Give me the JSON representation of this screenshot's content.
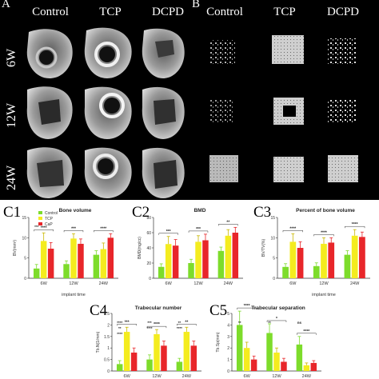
{
  "panel_a": {
    "letter": "A",
    "columns": [
      "Control",
      "TCP",
      "DCPD"
    ],
    "rows": [
      "6W",
      "12W",
      "24W"
    ]
  },
  "panel_b": {
    "letter": "B",
    "columns": [
      "Control",
      "TCP",
      "DCPD"
    ]
  },
  "colors": {
    "control": "#7ddc2b",
    "tcp": "#f4ec1f",
    "cap": "#e8262a",
    "background_top": "#000000"
  },
  "chart_data": [
    {
      "id": "C1",
      "letter": "C1",
      "type": "bar",
      "title": "Bone volume",
      "ylabel": "BV(mm³)",
      "xlabel": "implant time",
      "categories": [
        "6W",
        "12W",
        "24W"
      ],
      "ylim": [
        0,
        15
      ],
      "yticks": [
        0,
        5,
        10,
        15
      ],
      "legend": {
        "placement": "top-left",
        "entries": [
          "Control",
          "TCP",
          "CaP"
        ]
      },
      "series": [
        {
          "name": "Control",
          "values": [
            2.4,
            3.5,
            5.8
          ],
          "errors": [
            1.0,
            0.8,
            1.0
          ]
        },
        {
          "name": "TCP",
          "values": [
            9.2,
            9.8,
            7.2
          ],
          "errors": [
            2.0,
            1.2,
            1.5
          ]
        },
        {
          "name": "CaP",
          "values": [
            7.3,
            8.5,
            10.0
          ],
          "errors": [
            1.5,
            1.2,
            1.0
          ]
        }
      ],
      "significance": [
        "****",
        "***",
        "****",
        "***"
      ]
    },
    {
      "id": "C2",
      "letter": "C2",
      "type": "bar",
      "title": "BMD",
      "ylabel": "BMD(mg/cc)",
      "xlabel": "",
      "categories": [
        "6W",
        "12W",
        "24W"
      ],
      "ylim": [
        0,
        80
      ],
      "yticks": [
        0,
        20,
        40,
        60,
        80
      ],
      "series": [
        {
          "name": "Control",
          "values": [
            15,
            20,
            36
          ],
          "errors": [
            4,
            5,
            5
          ]
        },
        {
          "name": "TCP",
          "values": [
            45,
            48,
            56
          ],
          "errors": [
            10,
            8,
            8
          ]
        },
        {
          "name": "CaP",
          "values": [
            43,
            50,
            60
          ],
          "errors": [
            8,
            8,
            7
          ]
        }
      ],
      "significance": [
        "***",
        "***",
        "**"
      ]
    },
    {
      "id": "C3",
      "letter": "C3",
      "type": "bar",
      "title": "Percent of bone volume",
      "ylabel": "BV/TV(%)",
      "xlabel": "implant time",
      "categories": [
        "6W",
        "12W",
        "24W"
      ],
      "ylim": [
        0,
        15
      ],
      "yticks": [
        0,
        5,
        10,
        15
      ],
      "series": [
        {
          "name": "Control",
          "values": [
            2.8,
            3.0,
            5.8
          ],
          "errors": [
            0.8,
            0.8,
            1.0
          ]
        },
        {
          "name": "TCP",
          "values": [
            9.0,
            8.5,
            10.5
          ],
          "errors": [
            2.0,
            1.5,
            1.5
          ]
        },
        {
          "name": "CaP",
          "values": [
            7.5,
            8.8,
            10.2
          ],
          "errors": [
            1.5,
            1.2,
            1.2
          ]
        }
      ],
      "significance": [
        "****",
        "****",
        "****"
      ]
    },
    {
      "id": "C4",
      "letter": "C4",
      "type": "bar",
      "title": "Trabecular number",
      "ylabel": "Tb.N(1/mm)",
      "xlabel": "",
      "categories": [
        "6W",
        "12W",
        "24W"
      ],
      "ylim": [
        0,
        2.5
      ],
      "yticks": [
        0,
        0.5,
        1,
        1.5,
        2,
        2.5
      ],
      "series": [
        {
          "name": "Control",
          "values": [
            0.3,
            0.5,
            0.4
          ],
          "errors": [
            0.15,
            0.2,
            0.15
          ]
        },
        {
          "name": "TCP",
          "values": [
            1.7,
            1.6,
            1.7
          ],
          "errors": [
            0.2,
            0.2,
            0.2
          ]
        },
        {
          "name": "CaP",
          "values": [
            0.8,
            1.1,
            1.1
          ],
          "errors": [
            0.2,
            0.2,
            0.2
          ]
        }
      ],
      "significance": [
        "***",
        "****",
        "**",
        "****",
        "***",
        "**",
        "**",
        "****",
        "****",
        "****"
      ]
    },
    {
      "id": "C5",
      "letter": "C5",
      "type": "bar",
      "title": "Trabecular separation",
      "ylabel": "Tb.Sp(mm)",
      "xlabel": "",
      "categories": [
        "6W",
        "12W",
        "24W"
      ],
      "ylim": [
        0,
        5
      ],
      "yticks": [
        0,
        1,
        2,
        3,
        4,
        5
      ],
      "series": [
        {
          "name": "Control",
          "values": [
            4.0,
            3.3,
            2.3
          ],
          "errors": [
            1.2,
            0.8,
            0.7
          ]
        },
        {
          "name": "TCP",
          "values": [
            2.0,
            1.6,
            0.5
          ],
          "errors": [
            0.5,
            0.4,
            0.2
          ]
        },
        {
          "name": "CaP",
          "values": [
            1.0,
            0.8,
            0.7
          ],
          "errors": [
            0.3,
            0.3,
            0.2
          ]
        }
      ],
      "significance": [
        "****",
        "*",
        "****",
        "**",
        "**",
        "ns"
      ]
    }
  ]
}
